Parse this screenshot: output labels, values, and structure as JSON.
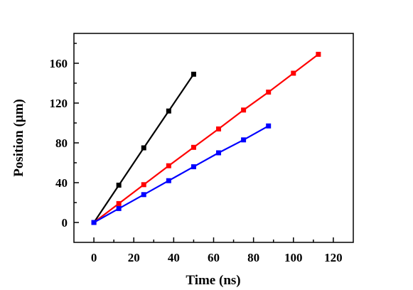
{
  "chart_data": {
    "type": "line",
    "title": "",
    "xlabel": "Time (ns)",
    "ylabel": "Position (μm)",
    "xlim": [
      -10,
      130
    ],
    "ylim": [
      -20,
      190
    ],
    "xticks": [
      0,
      20,
      40,
      60,
      80,
      100,
      120
    ],
    "yticks": [
      0,
      40,
      80,
      120,
      160
    ],
    "grid": false,
    "legend": "none",
    "series": [
      {
        "color": "#000000",
        "x": [
          0,
          12.5,
          25,
          37.5,
          50
        ],
        "y": [
          0,
          37.5,
          75,
          112,
          149
        ]
      },
      {
        "color": "#ff0000",
        "x": [
          0,
          12.5,
          25,
          37.5,
          50,
          62.5,
          75,
          87.5,
          100,
          112.5
        ],
        "y": [
          0,
          19,
          38,
          57,
          75.5,
          94,
          113,
          131,
          150,
          169
        ]
      },
      {
        "color": "#0000ff",
        "x": [
          0,
          12.5,
          25,
          37.5,
          50,
          62.5,
          75,
          87.5
        ],
        "y": [
          0,
          14,
          28,
          42,
          56,
          70,
          83,
          97
        ]
      }
    ]
  }
}
